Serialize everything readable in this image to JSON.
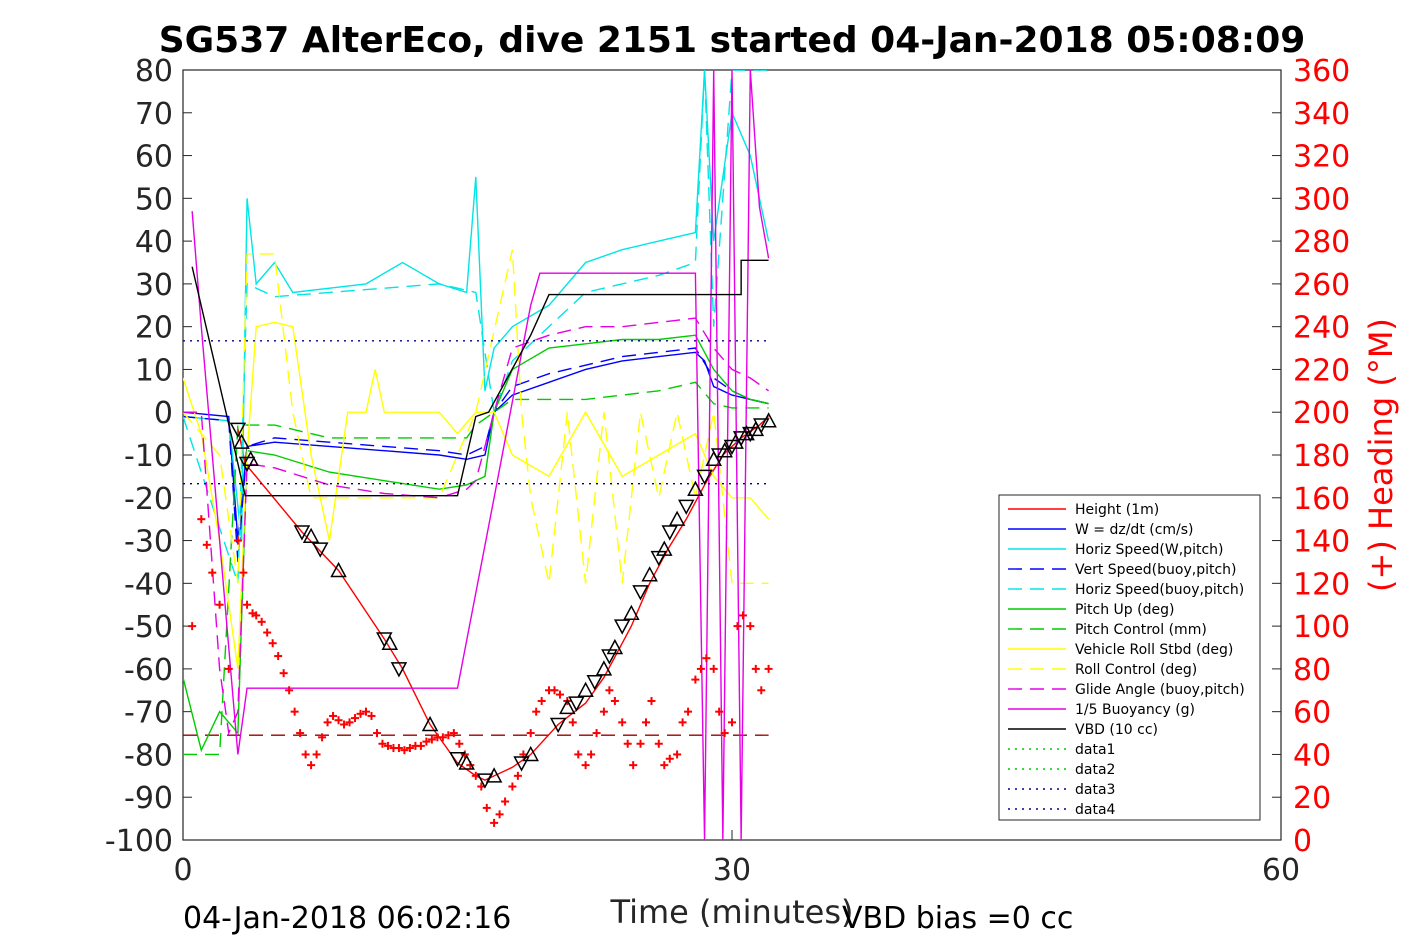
{
  "chart_data": {
    "type": "line",
    "title": "SG537 AlterEco, dive 2151 started 04-Jan-2018 05:08:09",
    "xlabel": "Time (minutes)",
    "ylabel": "",
    "y2label": "(+) Heading (°M)",
    "xlim": [
      0,
      60
    ],
    "ylim": [
      -100,
      80
    ],
    "y2lim": [
      0,
      360
    ],
    "x_ticks": [
      0,
      30,
      60
    ],
    "y_ticks": [
      80,
      70,
      60,
      50,
      40,
      30,
      20,
      10,
      0,
      -10,
      -20,
      -30,
      -40,
      -50,
      -60,
      -70,
      -80,
      -90,
      -100
    ],
    "y2_ticks": [
      360,
      340,
      320,
      300,
      280,
      260,
      240,
      220,
      200,
      180,
      160,
      140,
      120,
      100,
      80,
      60,
      40,
      20,
      0
    ],
    "footer_left": "04-Jan-2018 06:02:16",
    "footer_right": "VBD bias =0 cc",
    "legend_position": "lower-right",
    "series": [
      {
        "name": "Height (1m)",
        "color": "#ff0000",
        "style": "solid",
        "x": [
          3.0,
          3.4,
          6.5,
          8.5,
          11.0,
          12.0,
          13.5,
          15.0,
          16.0,
          16.5,
          17.0,
          18.0,
          19.0,
          20.5,
          22.0,
          23.0,
          24.5,
          25.5,
          26.5,
          27.5,
          28.5,
          29.5,
          30.5,
          31.5,
          32.0
        ],
        "y": [
          -3.8,
          -12,
          -28,
          -37,
          -53,
          -60,
          -73,
          -82,
          -85,
          -86,
          -85,
          -83,
          -80,
          -73,
          -68,
          -62,
          -50,
          -40,
          -32,
          -25,
          -17,
          -10,
          -6,
          -3,
          -1
        ]
      },
      {
        "name": "W = dz/dt (cm/s)",
        "color": "#0000ff",
        "style": "solid",
        "x": [
          0,
          2.5,
          3.0,
          3.5,
          5,
          8,
          11,
          14,
          15.5,
          16.5,
          17,
          18,
          20,
          22,
          24,
          26,
          28,
          28.5,
          29,
          30,
          31,
          32
        ],
        "y": [
          0,
          -1,
          -30,
          -8,
          -7,
          -8,
          -9,
          -10,
          -11,
          -10,
          0,
          4,
          7,
          10,
          12,
          13,
          14,
          12,
          6,
          4,
          3,
          2
        ]
      },
      {
        "name": "Horiz Speed(W,pitch)",
        "color": "#00e5e5",
        "style": "solid",
        "x": [
          0,
          2.5,
          3.2,
          3.5,
          4,
          5,
          6,
          8,
          10,
          12,
          14,
          15.5,
          16,
          16.5,
          17,
          18,
          20,
          22,
          24,
          26,
          28,
          28.5,
          29,
          30,
          31,
          32
        ],
        "y": [
          -1,
          -2,
          -30,
          50,
          30,
          35,
          28,
          29,
          30,
          35,
          30,
          28,
          55,
          5,
          15,
          20,
          25,
          35,
          38,
          40,
          42,
          80,
          40,
          70,
          60,
          40
        ]
      },
      {
        "name": "Vert Speed(buoy,pitch)",
        "color": "#0000ff",
        "style": "dashed",
        "x": [
          0,
          2.5,
          3.0,
          3.5,
          5,
          8,
          11,
          14,
          15.5,
          16.5,
          17,
          18,
          20,
          22,
          24,
          26,
          28,
          29,
          30,
          31,
          32
        ],
        "y": [
          -1,
          -2,
          -35,
          -8,
          -6,
          -7,
          -8,
          -9,
          -10,
          -8,
          0,
          6,
          9,
          11,
          13,
          14,
          15,
          8,
          5,
          3,
          2
        ]
      },
      {
        "name": "Horiz Speed(buoy,pitch)",
        "color": "#00e5e5",
        "style": "dashed",
        "x": [
          0,
          3,
          3.5,
          5,
          8,
          11,
          14,
          16,
          17,
          18,
          20,
          22,
          24,
          26,
          28,
          28.5,
          29,
          30,
          31,
          32
        ],
        "y": [
          -1,
          -40,
          30,
          27,
          28,
          29,
          30,
          28,
          0,
          12,
          20,
          28,
          30,
          32,
          35,
          80,
          20,
          80,
          80,
          80
        ]
      },
      {
        "name": "Pitch Up (deg)",
        "color": "#00cc00",
        "style": "solid",
        "x": [
          0,
          1,
          2,
          3,
          3.5,
          5,
          8,
          11,
          14,
          15.5,
          16.5,
          17,
          18,
          20,
          22,
          24,
          26,
          28,
          29,
          30,
          31,
          32
        ],
        "y": [
          -62,
          -79,
          -70,
          -75,
          -9,
          -10,
          -14,
          -16,
          -18,
          -17,
          -15,
          0,
          10,
          15,
          16,
          17,
          17,
          18,
          10,
          5,
          3,
          2
        ]
      },
      {
        "name": "Pitch Control (mm)",
        "color": "#00cc00",
        "style": "dashed",
        "x": [
          0,
          2,
          3,
          3.5,
          5,
          8,
          11,
          14,
          15.5,
          16,
          17,
          18,
          20,
          22,
          24,
          26,
          28,
          29,
          30,
          32
        ],
        "y": [
          -80,
          -80,
          -3,
          -3,
          -3,
          -6,
          -6,
          -6,
          -6,
          -3,
          0,
          3,
          3,
          3,
          4,
          5,
          7,
          2,
          1,
          1
        ]
      },
      {
        "name": "Vehicle Roll Stbd (deg)",
        "color": "#ffff00",
        "style": "solid",
        "x": [
          0,
          1,
          2,
          3,
          3.5,
          4,
          5,
          6,
          7,
          8,
          9,
          10,
          10.5,
          11,
          12,
          13,
          14,
          15,
          16,
          17,
          18,
          20,
          22,
          24,
          26,
          28,
          29,
          30,
          31,
          32
        ],
        "y": [
          8,
          -5,
          -30,
          -60,
          -10,
          20,
          21,
          20,
          -10,
          -30,
          0,
          0,
          10,
          0,
          0,
          0,
          0,
          -5,
          0,
          0,
          -10,
          -15,
          0,
          -15,
          -10,
          -5,
          -15,
          -20,
          -20,
          -25
        ]
      },
      {
        "name": "Roll Control (deg)",
        "color": "#ffff00",
        "style": "dashed",
        "x": [
          0,
          2,
          3,
          3.5,
          4,
          5,
          6,
          7,
          8,
          10,
          12,
          14,
          16,
          18,
          18.5,
          19,
          20,
          21,
          22,
          23,
          24,
          25,
          26,
          27,
          28,
          29,
          30,
          31,
          32
        ],
        "y": [
          0,
          -10,
          -40,
          37,
          37,
          37,
          0,
          -20,
          -20,
          -20,
          -20,
          -20,
          0,
          38,
          0,
          -20,
          -40,
          0,
          -40,
          0,
          -40,
          0,
          -20,
          0,
          -20,
          0,
          -40,
          -40,
          -40
        ]
      },
      {
        "name": "Glide Angle (buoy,pitch)",
        "color": "#e500e5",
        "style": "dashed",
        "x": [
          0,
          1,
          2,
          2.5,
          3,
          3.5,
          5,
          8,
          11,
          14,
          15.5,
          16,
          17,
          18,
          20,
          22,
          24,
          26,
          28,
          29,
          30,
          31,
          32
        ],
        "y": [
          0,
          0,
          -60,
          -75,
          -70,
          -12,
          -13,
          -17,
          -19,
          -20,
          -18,
          -16,
          0,
          15,
          18,
          20,
          20,
          21,
          22,
          15,
          10,
          8,
          5
        ]
      },
      {
        "name": "1/5 Buoyancy (g)",
        "color": "#e500e5",
        "style": "solid",
        "x": [
          0.5,
          1,
          2,
          3,
          3.5,
          15.0,
          17.0,
          19.0,
          19.5,
          28.0,
          28.5,
          29.0,
          29.5,
          30.0,
          30.5,
          31.0,
          31.5,
          32.0
        ],
        "y": [
          47,
          20,
          -30,
          -80,
          -64.5,
          -64.5,
          -20,
          25,
          32.5,
          32.5,
          -100,
          80,
          -100,
          80,
          -100,
          80,
          48,
          36
        ]
      },
      {
        "name": "VBD (10 cc)",
        "color": "#000000",
        "style": "solid",
        "x": [
          0.5,
          3,
          3.4,
          15.0,
          16.0,
          16.7,
          19.0,
          20.0,
          28.0,
          30.0,
          30.5,
          30.5,
          32.0
        ],
        "y": [
          34,
          -12,
          -19.5,
          -19.5,
          -1,
          0,
          18,
          27.5,
          27.5,
          27.5,
          27.5,
          35.5,
          35.5
        ]
      },
      {
        "name": "data1",
        "color": "#00cc00",
        "style": "dotted",
        "x": [],
        "y": []
      },
      {
        "name": "data2",
        "color": "#00cc00",
        "style": "dotted",
        "x": [],
        "y": []
      },
      {
        "name": "data3",
        "color": "#000080",
        "style": "dotted",
        "x": [
          0,
          32
        ],
        "y": [
          16.7,
          16.7
        ]
      },
      {
        "name": "data4",
        "color": "#000080",
        "style": "dotted",
        "x": [
          0,
          32
        ],
        "y": [
          -16.7,
          -16.7
        ]
      }
    ],
    "ref_lines": [
      {
        "color": "#990000",
        "style": "dashed",
        "x": [
          0,
          32
        ],
        "y": [
          -75.5,
          -75.5
        ]
      }
    ],
    "heading_points": {
      "color": "#ff0000",
      "marker": "+",
      "x": [
        0.5,
        1.0,
        1.3,
        1.6,
        2.0,
        2.5,
        3.0,
        3.3,
        3.5,
        3.8,
        4.0,
        4.3,
        4.6,
        4.9,
        5.2,
        5.5,
        5.8,
        6.1,
        6.4,
        6.7,
        7.0,
        7.3,
        7.6,
        7.9,
        8.2,
        8.5,
        8.8,
        9.1,
        9.4,
        9.7,
        10.0,
        10.3,
        10.6,
        10.9,
        11.2,
        11.5,
        11.8,
        12.1,
        12.4,
        12.7,
        13.0,
        13.3,
        13.6,
        13.9,
        14.2,
        14.5,
        14.8,
        15.1,
        15.4,
        15.7,
        16.0,
        16.3,
        16.6,
        17.0,
        17.3,
        17.6,
        18.0,
        18.3,
        18.6,
        19.0,
        19.3,
        19.6,
        20.0,
        20.3,
        20.6,
        21.0,
        21.3,
        21.6,
        22.0,
        22.3,
        22.6,
        23.0,
        23.3,
        23.6,
        24.0,
        24.3,
        24.6,
        25.0,
        25.3,
        25.6,
        26.0,
        26.3,
        26.6,
        27.0,
        27.3,
        27.6,
        28.0,
        28.3,
        28.6,
        29.0,
        29.3,
        29.6,
        30.0,
        30.3,
        30.6,
        31.0,
        31.3,
        31.6,
        32.0
      ],
      "y": [
        100,
        150,
        138,
        125,
        110,
        80,
        140,
        125,
        110,
        106,
        105,
        102,
        97,
        92,
        86,
        78,
        70,
        60,
        50,
        40,
        35,
        40,
        48,
        55,
        58,
        56,
        54,
        55,
        57,
        59,
        60,
        58,
        50,
        45,
        44,
        43,
        43,
        42,
        43,
        44,
        44,
        46,
        47,
        48,
        48,
        49,
        50,
        45,
        40,
        35,
        30,
        25,
        15,
        8,
        12,
        18,
        25,
        30,
        40,
        50,
        60,
        65,
        70,
        70,
        68,
        65,
        55,
        40,
        35,
        40,
        50,
        60,
        70,
        65,
        55,
        45,
        35,
        45,
        55,
        65,
        45,
        35,
        38,
        40,
        55,
        60,
        75,
        80,
        85,
        80,
        60,
        50,
        55,
        100,
        105,
        100,
        80,
        70,
        80
      ]
    },
    "triangle_markers": {
      "color": "#000000",
      "x": [
        3.0,
        3.2,
        3.5,
        3.7,
        6.5,
        7.0,
        7.5,
        8.5,
        11.0,
        11.3,
        11.8,
        13.5,
        15.0,
        15.5,
        16.5,
        17.0,
        18.5,
        19.0,
        20.5,
        21.0,
        21.5,
        22.0,
        22.5,
        23.0,
        23.3,
        23.6,
        24.0,
        24.5,
        25.0,
        25.5,
        26.0,
        26.3,
        26.6,
        27.0,
        27.5,
        28.0,
        28.5,
        29.0,
        29.3,
        29.6,
        30.0,
        30.2,
        30.5,
        30.8,
        31.0,
        31.3,
        31.6,
        32.0
      ],
      "y": [
        -4,
        -7,
        -12,
        -11,
        -28,
        -29,
        -32,
        -37,
        -53,
        -54,
        -60,
        -73,
        -81,
        -82,
        -86,
        -85,
        -82,
        -80,
        -73,
        -69,
        -68,
        -65,
        -63,
        -60,
        -57,
        -55,
        -50,
        -47,
        -42,
        -38,
        -34,
        -32,
        -28,
        -25,
        -22,
        -18,
        -15,
        -11,
        -10,
        -9,
        -8,
        -7,
        -6,
        -5,
        -5,
        -4,
        -3,
        -2
      ]
    }
  }
}
